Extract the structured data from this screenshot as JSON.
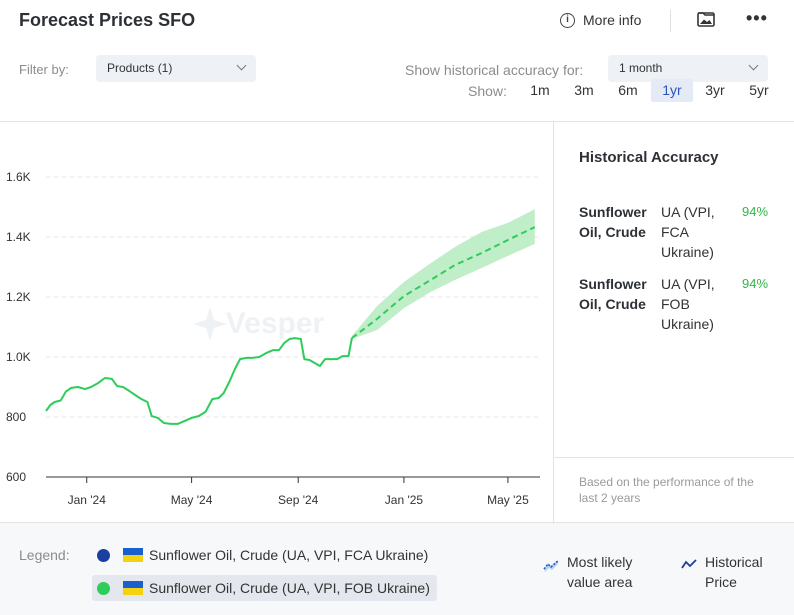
{
  "header": {
    "title": "Forecast Prices SFO",
    "more_info": "More info",
    "info_icon_glyph": "i",
    "menu_glyph": "•••"
  },
  "filters": {
    "filter_label": "Filter by:",
    "products_value": "Products (1)",
    "accuracy_label": "Show historical accuracy for:",
    "accuracy_value": "1 month",
    "show_label": "Show:",
    "ranges": [
      "1m",
      "3m",
      "6m",
      "1yr",
      "3yr",
      "5yr"
    ],
    "active_range": "1yr"
  },
  "side_panel": {
    "title": "Historical Accuracy",
    "rows": [
      {
        "product": "Sunflower Oil, Crude",
        "source": "UA (VPI, FCA Ukraine)",
        "accuracy": "94%"
      },
      {
        "product": "Sunflower Oil, Crude",
        "source": "UA (VPI, FOB Ukraine)",
        "accuracy": "94%"
      }
    ],
    "footnote": "Based on the performance of the last 2 years"
  },
  "legend": {
    "label": "Legend:",
    "items": [
      {
        "text": "Sunflower Oil, Crude (UA, VPI, FCA Ukraine)",
        "color": "#1a3fa0"
      },
      {
        "text": "Sunflower Oil, Crude (UA, VPI, FOB Ukraine)",
        "color": "#2ecc5a"
      }
    ],
    "most_likely": "Most likely value area",
    "historical": "Historical Price"
  },
  "colors": {
    "accent": "#2d56b8",
    "series": "#2ecc5a",
    "band": "#b8ecc2",
    "accuracy": "#2eb84b"
  },
  "chart_data": {
    "type": "line",
    "watermark": "Vesper",
    "ylim": [
      600,
      1650
    ],
    "yticks": [
      600,
      800,
      1000,
      1200,
      1400,
      1600
    ],
    "ytick_labels": [
      "600",
      "800",
      "1.0K",
      "1.2K",
      "1.4K",
      "1.6K"
    ],
    "xlim": [
      "2023-11-15",
      "2025-06-07"
    ],
    "xticks": [
      {
        "date": "2024-01-01",
        "label": "Jan '24"
      },
      {
        "date": "2024-05-01",
        "label": "May '24"
      },
      {
        "date": "2024-09-01",
        "label": "Sep '24"
      },
      {
        "date": "2025-01-01",
        "label": "Jan '25"
      },
      {
        "date": "2025-05-01",
        "label": "May '25"
      }
    ],
    "grid": true,
    "series": [
      {
        "type": "historical",
        "points": [
          [
            "2023-11-15",
            820
          ],
          [
            "2023-11-20",
            840
          ],
          [
            "2023-11-25",
            850
          ],
          [
            "2023-12-02",
            855
          ],
          [
            "2023-12-08",
            885
          ],
          [
            "2023-12-14",
            897
          ],
          [
            "2023-12-22",
            900
          ],
          [
            "2023-12-30",
            893
          ],
          [
            "2024-01-06",
            900
          ],
          [
            "2024-01-14",
            913
          ],
          [
            "2024-01-22",
            930
          ],
          [
            "2024-01-30",
            927
          ],
          [
            "2024-02-05",
            903
          ],
          [
            "2024-02-12",
            900
          ],
          [
            "2024-02-19",
            887
          ],
          [
            "2024-02-26",
            873
          ],
          [
            "2024-03-04",
            860
          ],
          [
            "2024-03-11",
            850
          ],
          [
            "2024-03-16",
            803
          ],
          [
            "2024-03-23",
            797
          ],
          [
            "2024-03-30",
            780
          ],
          [
            "2024-04-07",
            777
          ],
          [
            "2024-04-15",
            777
          ],
          [
            "2024-04-23",
            787
          ],
          [
            "2024-05-01",
            797
          ],
          [
            "2024-05-09",
            803
          ],
          [
            "2024-05-17",
            817
          ],
          [
            "2024-05-25",
            860
          ],
          [
            "2024-06-01",
            863
          ],
          [
            "2024-06-07",
            880
          ],
          [
            "2024-06-14",
            920
          ],
          [
            "2024-06-20",
            960
          ],
          [
            "2024-06-26",
            993
          ],
          [
            "2024-07-03",
            997
          ],
          [
            "2024-07-10",
            997
          ],
          [
            "2024-07-18",
            1000
          ],
          [
            "2024-07-26",
            1013
          ],
          [
            "2024-08-03",
            1023
          ],
          [
            "2024-08-10",
            1023
          ],
          [
            "2024-08-16",
            1047
          ],
          [
            "2024-08-22",
            1060
          ],
          [
            "2024-08-28",
            1063
          ],
          [
            "2024-09-04",
            1060
          ],
          [
            "2024-09-08",
            993
          ],
          [
            "2024-09-14",
            990
          ],
          [
            "2024-09-20",
            980
          ],
          [
            "2024-09-26",
            970
          ],
          [
            "2024-10-02",
            993
          ],
          [
            "2024-10-09",
            993
          ],
          [
            "2024-10-16",
            993
          ],
          [
            "2024-10-22",
            1003
          ],
          [
            "2024-10-29",
            1003
          ],
          [
            "2024-11-02",
            1063
          ]
        ]
      },
      {
        "type": "forecast",
        "points": [
          [
            "2024-11-02",
            1063
          ],
          [
            "2024-12-01",
            1127
          ],
          [
            "2025-01-01",
            1203
          ],
          [
            "2025-02-01",
            1257
          ],
          [
            "2025-03-01",
            1307
          ],
          [
            "2025-04-01",
            1347
          ],
          [
            "2025-05-01",
            1390
          ],
          [
            "2025-06-01",
            1433
          ]
        ],
        "upper": [
          1070,
          1170,
          1250,
          1313,
          1367,
          1417,
          1447,
          1493
        ],
        "lower": [
          1060,
          1090,
          1163,
          1217,
          1257,
          1297,
          1337,
          1377
        ]
      }
    ]
  }
}
